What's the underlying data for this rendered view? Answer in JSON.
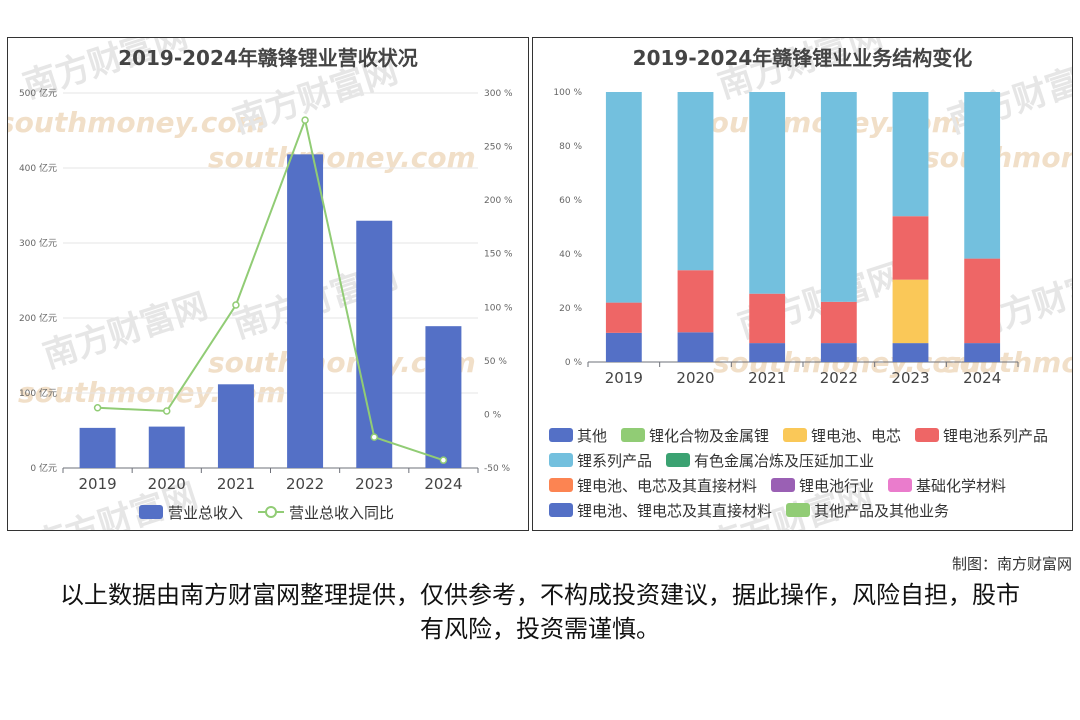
{
  "watermark": {
    "cn": "南方财富网",
    "en": "southmoney.com"
  },
  "credit": "制图：南方财富网",
  "disclaimer": "以上数据由南方财富网整理提供，仅供参考，不构成投资建议，据此操作，风险自担，股市有风险，投资需谨慎。",
  "chart_data": [
    {
      "type": "bar",
      "title": "2019-2024年赣锋锂业营收状况",
      "categories": [
        "2019",
        "2020",
        "2021",
        "2022",
        "2023",
        "2024"
      ],
      "y_left": {
        "min": 0,
        "max": 500,
        "ticks": [
          "0 亿元",
          "100 亿元",
          "200 亿元",
          "300 亿元",
          "400 亿元",
          "500 亿元"
        ]
      },
      "y_right": {
        "min": -50,
        "max": 300,
        "ticks": [
          "-50 %",
          "0 %",
          "50 %",
          "100 %",
          "150 %",
          "200 %",
          "250 %",
          "300 %"
        ]
      },
      "series": [
        {
          "name": "营业总收入",
          "kind": "bar",
          "axis": "left",
          "color": "#5470c6",
          "values": [
            53.5,
            55.2,
            111.6,
            418.2,
            329.7,
            189.1
          ]
        },
        {
          "name": "营业总收入同比",
          "kind": "line",
          "axis": "right",
          "color": "#91cc75",
          "values": [
            6.2,
            3.2,
            102.1,
            274.7,
            -21.2,
            -42.7
          ]
        }
      ],
      "legend": "bottom",
      "grid": true
    },
    {
      "type": "bar",
      "stacked": true,
      "title": "2019-2024年赣锋锂业业务结构变化",
      "categories": [
        "2019",
        "2020",
        "2021",
        "2022",
        "2023",
        "2024"
      ],
      "y": {
        "min": 0,
        "max": 100,
        "ticks": [
          "0 %",
          "20 %",
          "40 %",
          "60 %",
          "80 %",
          "100 %"
        ]
      },
      "series": [
        {
          "name": "其他",
          "color": "#5470c6",
          "values": [
            10.8,
            11.0,
            7.0,
            7.0,
            7.0,
            7.0
          ]
        },
        {
          "name": "锂化合物及金属锂",
          "color": "#91cc75",
          "values": [
            0,
            0,
            0,
            0,
            0,
            0
          ]
        },
        {
          "name": "锂电池、电芯",
          "color": "#fac858",
          "values": [
            0,
            0,
            0,
            0,
            23.5,
            0
          ]
        },
        {
          "name": "锂电池系列产品",
          "color": "#ee6666",
          "values": [
            11.2,
            23.0,
            18.3,
            15.3,
            23.5,
            31.3
          ]
        },
        {
          "name": "锂系列产品",
          "color": "#73c0de",
          "values": [
            78.0,
            66.0,
            74.7,
            77.7,
            46.0,
            61.7
          ]
        },
        {
          "name": "有色金属冶炼及压延加工业",
          "color": "#3ba272",
          "values": [
            0,
            0,
            0,
            0,
            0,
            0
          ]
        },
        {
          "name": "锂电池、电芯及其直接材料",
          "color": "#fc8452",
          "values": [
            0,
            0,
            0,
            0,
            0,
            0
          ]
        },
        {
          "name": "锂电池行业",
          "color": "#9a60b4",
          "values": [
            0,
            0,
            0,
            0,
            0,
            0
          ]
        },
        {
          "name": "基础化学材料",
          "color": "#ea7ccc",
          "values": [
            0,
            0,
            0,
            0,
            0,
            0
          ]
        },
        {
          "name": "锂电池、锂电芯及其直接材料",
          "color": "#5470c6",
          "values": [
            0,
            0,
            0,
            0,
            0,
            0
          ]
        },
        {
          "name": "其他产品及其他业务",
          "color": "#91cc75",
          "values": [
            0,
            0,
            0,
            0,
            0,
            0
          ]
        }
      ],
      "legend": "bottom",
      "grid": false
    }
  ]
}
